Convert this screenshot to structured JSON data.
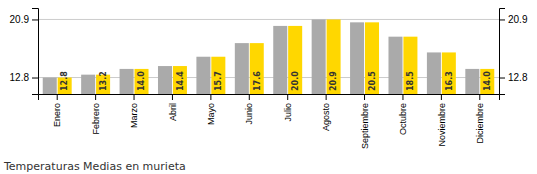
{
  "chart_data": {
    "type": "bar",
    "title": "Temperaturas Medias en murieta",
    "categories": [
      "Enero",
      "Febrero",
      "Marzo",
      "Abril",
      "Mayo",
      "Junio",
      "Julio",
      "Agosto",
      "Septiembre",
      "Octubre",
      "Noviembre",
      "Diciembre"
    ],
    "series": [
      {
        "color": "#AAAAAA",
        "values": [
          12.8,
          13.2,
          14.0,
          14.4,
          15.7,
          17.6,
          20.0,
          20.9,
          20.5,
          18.5,
          16.3,
          14.0
        ]
      },
      {
        "color": "#FFD700",
        "values": [
          12.8,
          13.2,
          14.0,
          14.4,
          15.7,
          17.6,
          20.0,
          20.9,
          20.5,
          18.5,
          16.3,
          14.0
        ],
        "data_labels": true,
        "value_labels": [
          "12.8",
          "13.2",
          "14.0",
          "14.4",
          "15.7",
          "17.6",
          "20.0",
          "20.9",
          "20.5",
          "18.5",
          "16.3",
          "14.0"
        ]
      }
    ],
    "ylim": [
      10.5,
      22.5
    ],
    "yticks": [
      12.8,
      20.9
    ],
    "y2lim": [
      10.5,
      22.5
    ],
    "y2ticks": [
      12.8,
      20.9
    ],
    "grid": true
  }
}
